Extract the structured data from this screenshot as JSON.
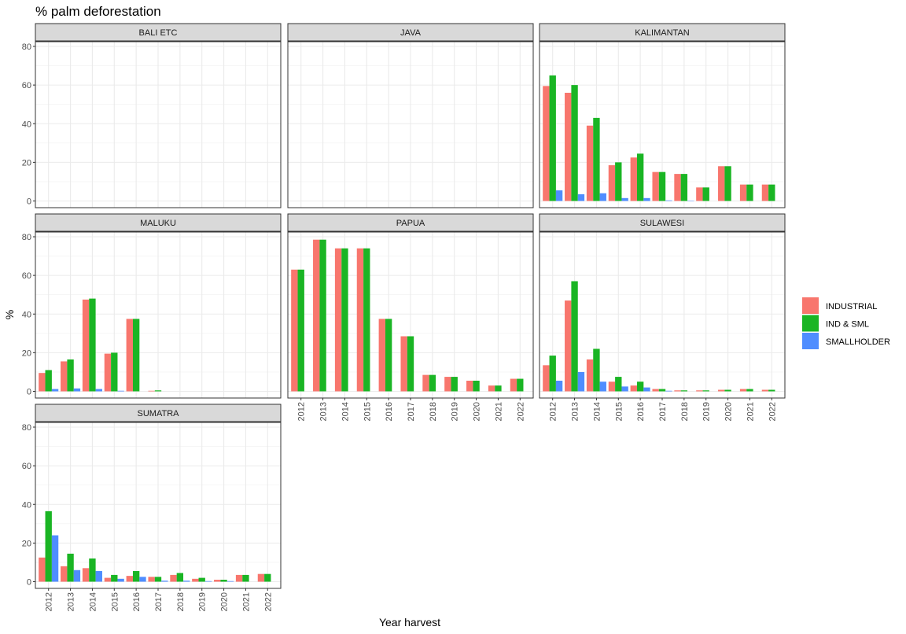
{
  "chart_data": {
    "type": "bar",
    "title": "% palm deforestation",
    "xlabel": "Year harvest",
    "ylabel": "%",
    "ylim": [
      0,
      82
    ],
    "yticks": [
      0,
      20,
      40,
      60,
      80
    ],
    "categories": [
      "2012",
      "2013",
      "2014",
      "2015",
      "2016",
      "2017",
      "2018",
      "2019",
      "2020",
      "2021",
      "2022"
    ],
    "legend": {
      "position": "right",
      "items": [
        {
          "name": "INDUSTRIAL",
          "color": "#F8766D"
        },
        {
          "name": "IND & SML",
          "color": "#1AB524"
        },
        {
          "name": "SMALLHOLDER",
          "color": "#4F8DFF"
        }
      ]
    },
    "grid": true,
    "panels": [
      {
        "name": "BALI ETC",
        "series": {
          "INDUSTRIAL": [
            0,
            0,
            0,
            0,
            0,
            0,
            0,
            0,
            0,
            0,
            0
          ],
          "IND & SML": [
            0,
            0,
            0,
            0,
            0,
            0,
            0,
            0,
            0,
            0,
            0
          ],
          "SMALLHOLDER": [
            0,
            0,
            0,
            0,
            0,
            0,
            0,
            0,
            0,
            0,
            0
          ]
        }
      },
      {
        "name": "JAVA",
        "series": {
          "INDUSTRIAL": [
            0,
            0,
            0,
            0,
            0,
            0,
            0,
            0,
            0,
            0,
            0
          ],
          "IND & SML": [
            0,
            0,
            0,
            0,
            0,
            0,
            0,
            0,
            0,
            0,
            0
          ],
          "SMALLHOLDER": [
            0,
            0,
            0,
            0,
            0,
            0,
            0,
            0,
            0,
            0,
            0
          ]
        }
      },
      {
        "name": "KALIMANTAN",
        "series": {
          "INDUSTRIAL": [
            59.5,
            56,
            39,
            18.5,
            22.5,
            15,
            14,
            7,
            18,
            8.5,
            8.5
          ],
          "IND & SML": [
            65,
            60,
            43,
            20,
            24.5,
            15,
            14,
            7,
            18,
            8.5,
            8.5
          ],
          "SMALLHOLDER": [
            5.5,
            3.5,
            4,
            1.5,
            1.5,
            0.3,
            0.2,
            0,
            0,
            0,
            0
          ]
        }
      },
      {
        "name": "MALUKU",
        "series": {
          "INDUSTRIAL": [
            9.5,
            15.5,
            47.5,
            19.5,
            37.5,
            0.3,
            0,
            0,
            0,
            0,
            0
          ],
          "IND & SML": [
            11,
            16.5,
            48,
            20,
            37.5,
            0.5,
            0,
            0,
            0,
            0,
            0
          ],
          "SMALLHOLDER": [
            1.2,
            1.5,
            1.2,
            0.3,
            0,
            0,
            0,
            0,
            0,
            0,
            0
          ]
        }
      },
      {
        "name": "PAPUA",
        "series": {
          "INDUSTRIAL": [
            63,
            78.5,
            74,
            74,
            37.5,
            28.5,
            8.5,
            7.5,
            5.5,
            3,
            6.5
          ],
          "IND & SML": [
            63,
            78.5,
            74,
            74,
            37.5,
            28.5,
            8.5,
            7.5,
            5.5,
            3,
            6.5
          ],
          "SMALLHOLDER": [
            0,
            0,
            0,
            0,
            0,
            0,
            0,
            0,
            0,
            0,
            0
          ]
        }
      },
      {
        "name": "SULAWESI",
        "series": {
          "INDUSTRIAL": [
            13.5,
            47,
            16.5,
            5,
            3,
            1.2,
            0.5,
            0.5,
            0.8,
            1.2,
            0.8
          ],
          "IND & SML": [
            18.5,
            57,
            22,
            7.5,
            5,
            1.2,
            0.5,
            0.5,
            0.8,
            1.2,
            0.8
          ],
          "SMALLHOLDER": [
            5.5,
            10,
            5,
            2.5,
            2,
            0.3,
            0,
            0,
            0,
            0,
            0
          ]
        }
      },
      {
        "name": "SUMATRA",
        "series": {
          "INDUSTRIAL": [
            12.5,
            8,
            7,
            2,
            3,
            2.5,
            3.5,
            1.5,
            1,
            3.5,
            4
          ],
          "IND & SML": [
            36.5,
            14.5,
            12,
            3.5,
            5.5,
            2.5,
            4.5,
            2,
            1,
            3.5,
            4
          ],
          "SMALLHOLDER": [
            24,
            6,
            5.5,
            1.5,
            2.5,
            0.5,
            0.5,
            0.3,
            0.3,
            0,
            0
          ]
        }
      }
    ]
  }
}
